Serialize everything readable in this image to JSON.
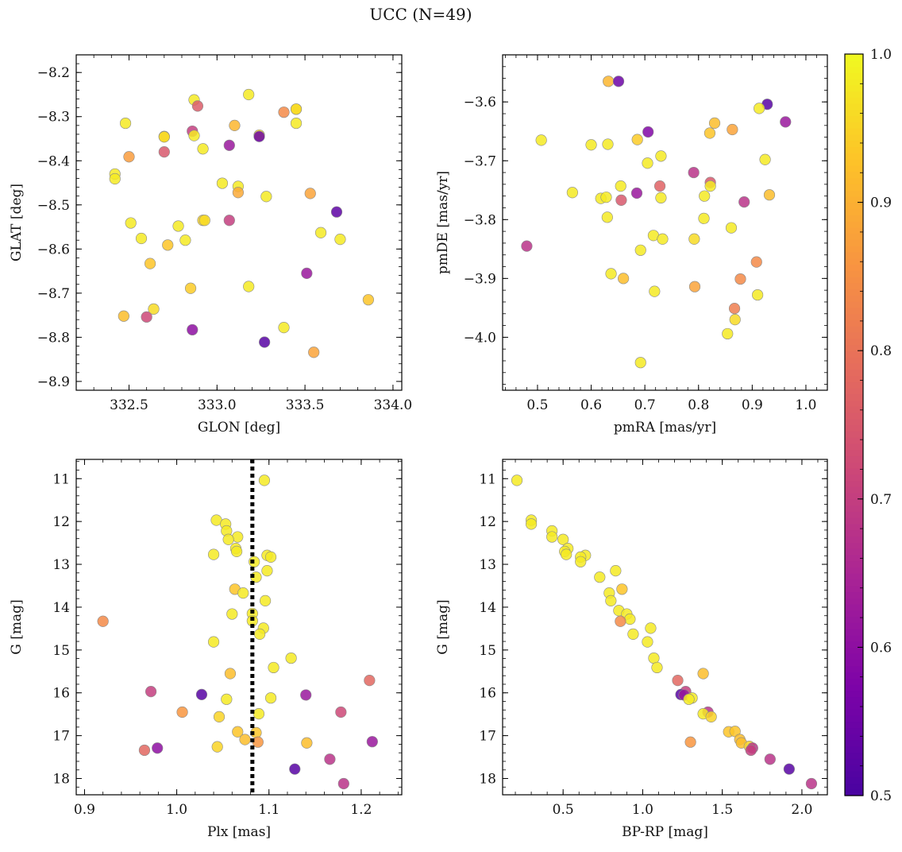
{
  "figure": {
    "title": "UCC (N=49)"
  },
  "colorbar": {
    "cmap": "plasma",
    "vmin": 0.5,
    "vmax": 1.0,
    "ticks": [
      0.5,
      0.6,
      0.7,
      0.8,
      0.9,
      1.0
    ],
    "tick_labels": [
      "0.5",
      "0.6",
      "0.7",
      "0.8",
      "0.9",
      "1.0"
    ]
  },
  "chart_data": [
    {
      "type": "scatter",
      "title": "",
      "xlabel": "GLON [deg]",
      "ylabel": "GLAT [deg]",
      "xlim": [
        332.2,
        334.05
      ],
      "ylim": [
        -8.92,
        -8.16
      ],
      "xticks": [
        332.5,
        333.0,
        333.5,
        334.0
      ],
      "xtick_labels": [
        "332.5",
        "333.0",
        "333.5",
        "334.0"
      ],
      "yticks": [
        -8.9,
        -8.8,
        -8.7,
        -8.6,
        -8.5,
        -8.4,
        -8.3,
        -8.2
      ],
      "ytick_labels": [
        "−8.9",
        "−8.8",
        "−8.7",
        "−8.6",
        "−8.5",
        "−8.4",
        "−8.3",
        "−8.2"
      ],
      "invert_y": false,
      "points": [
        {
          "x": 332.87,
          "y": -8.262,
          "c": 0.98
        },
        {
          "x": 332.89,
          "y": -8.276,
          "c": 0.76
        },
        {
          "x": 333.18,
          "y": -8.25,
          "c": 0.98
        },
        {
          "x": 333.38,
          "y": -8.29,
          "c": 0.84
        },
        {
          "x": 333.45,
          "y": -8.283,
          "c": 0.95
        },
        {
          "x": 333.45,
          "y": -8.283,
          "c": 0.96
        },
        {
          "x": 332.48,
          "y": -8.315,
          "c": 0.98
        },
        {
          "x": 332.86,
          "y": -8.333,
          "c": 0.7
        },
        {
          "x": 332.87,
          "y": -8.343,
          "c": 0.98
        },
        {
          "x": 332.7,
          "y": -8.345,
          "c": 0.94
        },
        {
          "x": 332.7,
          "y": -8.346,
          "c": 0.96
        },
        {
          "x": 333.1,
          "y": -8.32,
          "c": 0.91
        },
        {
          "x": 333.24,
          "y": -8.342,
          "c": 0.96
        },
        {
          "x": 333.24,
          "y": -8.345,
          "c": 0.55
        },
        {
          "x": 333.45,
          "y": -8.315,
          "c": 0.98
        },
        {
          "x": 333.07,
          "y": -8.365,
          "c": 0.62
        },
        {
          "x": 332.92,
          "y": -8.373,
          "c": 0.98
        },
        {
          "x": 332.5,
          "y": -8.391,
          "c": 0.87
        },
        {
          "x": 332.7,
          "y": -8.38,
          "c": 0.75
        },
        {
          "x": 332.42,
          "y": -8.43,
          "c": 0.98
        },
        {
          "x": 332.42,
          "y": -8.441,
          "c": 0.98
        },
        {
          "x": 333.03,
          "y": -8.451,
          "c": 0.98
        },
        {
          "x": 333.12,
          "y": -8.458,
          "c": 0.98
        },
        {
          "x": 333.12,
          "y": -8.472,
          "c": 0.89
        },
        {
          "x": 333.28,
          "y": -8.481,
          "c": 0.98
        },
        {
          "x": 333.53,
          "y": -8.474,
          "c": 0.88
        },
        {
          "x": 333.68,
          "y": -8.516,
          "c": 0.53
        },
        {
          "x": 332.51,
          "y": -8.541,
          "c": 0.98
        },
        {
          "x": 332.78,
          "y": -8.548,
          "c": 0.98
        },
        {
          "x": 332.92,
          "y": -8.535,
          "c": 0.95
        },
        {
          "x": 332.93,
          "y": -8.535,
          "c": 0.96
        },
        {
          "x": 333.07,
          "y": -8.535,
          "c": 0.7
        },
        {
          "x": 332.57,
          "y": -8.576,
          "c": 0.98
        },
        {
          "x": 332.72,
          "y": -8.591,
          "c": 0.93
        },
        {
          "x": 332.82,
          "y": -8.58,
          "c": 0.98
        },
        {
          "x": 333.59,
          "y": -8.563,
          "c": 0.98
        },
        {
          "x": 333.7,
          "y": -8.578,
          "c": 0.98
        },
        {
          "x": 332.62,
          "y": -8.633,
          "c": 0.93
        },
        {
          "x": 333.51,
          "y": -8.655,
          "c": 0.62
        },
        {
          "x": 332.85,
          "y": -8.689,
          "c": 0.94
        },
        {
          "x": 333.18,
          "y": -8.685,
          "c": 0.98
        },
        {
          "x": 332.64,
          "y": -8.736,
          "c": 0.96
        },
        {
          "x": 333.86,
          "y": -8.715,
          "c": 0.93
        },
        {
          "x": 332.47,
          "y": -8.752,
          "c": 0.92
        },
        {
          "x": 332.6,
          "y": -8.754,
          "c": 0.72
        },
        {
          "x": 332.86,
          "y": -8.783,
          "c": 0.6
        },
        {
          "x": 333.38,
          "y": -8.778,
          "c": 0.98
        },
        {
          "x": 333.27,
          "y": -8.811,
          "c": 0.52
        },
        {
          "x": 333.55,
          "y": -8.834,
          "c": 0.88
        }
      ]
    },
    {
      "type": "scatter",
      "title": "",
      "xlabel": "pmRA [mas/yr]",
      "ylabel": "pmDE [mas/yr]",
      "xlim": [
        0.435,
        1.04
      ],
      "ylim": [
        -4.09,
        -3.52
      ],
      "xticks": [
        0.5,
        0.6,
        0.7,
        0.8,
        0.9,
        1.0
      ],
      "xtick_labels": [
        "0.5",
        "0.6",
        "0.7",
        "0.8",
        "0.9",
        "1.0"
      ],
      "yticks": [
        -4.0,
        -3.9,
        -3.8,
        -3.7,
        -3.6
      ],
      "ytick_labels": [
        "−4.0",
        "−3.9",
        "−3.8",
        "−3.7",
        "−3.6"
      ],
      "invert_y": false,
      "points": [
        {
          "x": 0.632,
          "y": -3.565,
          "c": 0.91
        },
        {
          "x": 0.651,
          "y": -3.565,
          "c": 0.55
        },
        {
          "x": 0.928,
          "y": -3.604,
          "c": 0.52
        },
        {
          "x": 0.913,
          "y": -3.611,
          "c": 0.98
        },
        {
          "x": 0.962,
          "y": -3.634,
          "c": 0.62
        },
        {
          "x": 0.83,
          "y": -3.636,
          "c": 0.92
        },
        {
          "x": 0.863,
          "y": -3.647,
          "c": 0.88
        },
        {
          "x": 0.706,
          "y": -3.651,
          "c": 0.58
        },
        {
          "x": 0.821,
          "y": -3.653,
          "c": 0.93
        },
        {
          "x": 0.507,
          "y": -3.665,
          "c": 0.98
        },
        {
          "x": 0.686,
          "y": -3.664,
          "c": 0.94
        },
        {
          "x": 0.6,
          "y": -3.673,
          "c": 0.98
        },
        {
          "x": 0.631,
          "y": -3.672,
          "c": 0.98
        },
        {
          "x": 0.73,
          "y": -3.692,
          "c": 0.98
        },
        {
          "x": 0.924,
          "y": -3.698,
          "c": 0.98
        },
        {
          "x": 0.705,
          "y": -3.704,
          "c": 0.98
        },
        {
          "x": 0.791,
          "y": -3.72,
          "c": 0.68
        },
        {
          "x": 0.822,
          "y": -3.737,
          "c": 0.75
        },
        {
          "x": 0.822,
          "y": -3.743,
          "c": 0.98
        },
        {
          "x": 0.728,
          "y": -3.743,
          "c": 0.77
        },
        {
          "x": 0.655,
          "y": -3.743,
          "c": 0.98
        },
        {
          "x": 0.565,
          "y": -3.754,
          "c": 0.98
        },
        {
          "x": 0.685,
          "y": -3.755,
          "c": 0.62
        },
        {
          "x": 0.932,
          "y": -3.758,
          "c": 0.92
        },
        {
          "x": 0.811,
          "y": -3.76,
          "c": 0.98
        },
        {
          "x": 0.618,
          "y": -3.764,
          "c": 0.98
        },
        {
          "x": 0.628,
          "y": -3.762,
          "c": 0.98
        },
        {
          "x": 0.73,
          "y": -3.763,
          "c": 0.98
        },
        {
          "x": 0.656,
          "y": -3.767,
          "c": 0.75
        },
        {
          "x": 0.885,
          "y": -3.77,
          "c": 0.68
        },
        {
          "x": 0.63,
          "y": -3.796,
          "c": 0.98
        },
        {
          "x": 0.81,
          "y": -3.798,
          "c": 0.98
        },
        {
          "x": 0.861,
          "y": -3.814,
          "c": 0.98
        },
        {
          "x": 0.716,
          "y": -3.827,
          "c": 0.98
        },
        {
          "x": 0.733,
          "y": -3.833,
          "c": 0.98
        },
        {
          "x": 0.792,
          "y": -3.833,
          "c": 0.96
        },
        {
          "x": 0.48,
          "y": -3.845,
          "c": 0.68
        },
        {
          "x": 0.692,
          "y": -3.852,
          "c": 0.98
        },
        {
          "x": 0.908,
          "y": -3.872,
          "c": 0.84
        },
        {
          "x": 0.637,
          "y": -3.892,
          "c": 0.98
        },
        {
          "x": 0.66,
          "y": -3.9,
          "c": 0.92
        },
        {
          "x": 0.878,
          "y": -3.901,
          "c": 0.84
        },
        {
          "x": 0.793,
          "y": -3.914,
          "c": 0.88
        },
        {
          "x": 0.718,
          "y": -3.922,
          "c": 0.98
        },
        {
          "x": 0.91,
          "y": -3.928,
          "c": 0.98
        },
        {
          "x": 0.867,
          "y": -3.951,
          "c": 0.82
        },
        {
          "x": 0.868,
          "y": -3.97,
          "c": 0.96
        },
        {
          "x": 0.854,
          "y": -3.994,
          "c": 0.98
        },
        {
          "x": 0.692,
          "y": -4.043,
          "c": 0.98
        }
      ]
    },
    {
      "type": "scatter",
      "title": "",
      "xlabel": "Plx [mas]",
      "ylabel": "G [mag]",
      "xlim": [
        0.891,
        1.244
      ],
      "ylim": [
        18.38,
        10.55
      ],
      "xticks": [
        0.9,
        1.0,
        1.1,
        1.2
      ],
      "xtick_labels": [
        "0.9",
        "1.0",
        "1.1",
        "1.2"
      ],
      "yticks": [
        11,
        12,
        13,
        14,
        15,
        16,
        17,
        18
      ],
      "ytick_labels": [
        "11",
        "12",
        "13",
        "14",
        "15",
        "16",
        "17",
        "18"
      ],
      "invert_y": true,
      "vline": {
        "x": 1.082,
        "style": "dotted",
        "color": "#000000"
      },
      "points": [
        {
          "x": 1.095,
          "y": 11.04,
          "c": 0.98
        },
        {
          "x": 1.043,
          "y": 11.97,
          "c": 0.98
        },
        {
          "x": 1.053,
          "y": 12.06,
          "c": 0.98
        },
        {
          "x": 1.054,
          "y": 12.22,
          "c": 0.98
        },
        {
          "x": 1.066,
          "y": 12.36,
          "c": 0.98
        },
        {
          "x": 1.056,
          "y": 12.42,
          "c": 0.98
        },
        {
          "x": 1.064,
          "y": 12.63,
          "c": 0.98
        },
        {
          "x": 1.065,
          "y": 12.7,
          "c": 0.98
        },
        {
          "x": 1.04,
          "y": 12.77,
          "c": 0.98
        },
        {
          "x": 1.098,
          "y": 12.79,
          "c": 0.98
        },
        {
          "x": 1.102,
          "y": 12.83,
          "c": 0.98
        },
        {
          "x": 1.084,
          "y": 12.94,
          "c": 0.98
        },
        {
          "x": 1.098,
          "y": 13.15,
          "c": 0.98
        },
        {
          "x": 1.086,
          "y": 13.3,
          "c": 0.98
        },
        {
          "x": 1.063,
          "y": 13.58,
          "c": 0.93
        },
        {
          "x": 1.072,
          "y": 13.67,
          "c": 0.98
        },
        {
          "x": 1.096,
          "y": 13.85,
          "c": 0.98
        },
        {
          "x": 1.06,
          "y": 14.16,
          "c": 0.98
        },
        {
          "x": 1.082,
          "y": 14.15,
          "c": 0.98
        },
        {
          "x": 1.082,
          "y": 14.32,
          "c": 0.98
        },
        {
          "x": 0.92,
          "y": 14.33,
          "c": 0.84
        },
        {
          "x": 1.094,
          "y": 14.49,
          "c": 0.98
        },
        {
          "x": 1.09,
          "y": 14.63,
          "c": 0.98
        },
        {
          "x": 1.04,
          "y": 14.81,
          "c": 0.98
        },
        {
          "x": 1.124,
          "y": 15.19,
          "c": 0.98
        },
        {
          "x": 1.105,
          "y": 15.41,
          "c": 0.98
        },
        {
          "x": 1.058,
          "y": 15.55,
          "c": 0.92
        },
        {
          "x": 1.209,
          "y": 15.71,
          "c": 0.78
        },
        {
          "x": 0.972,
          "y": 15.97,
          "c": 0.7
        },
        {
          "x": 1.027,
          "y": 16.04,
          "c": 0.52
        },
        {
          "x": 1.14,
          "y": 16.05,
          "c": 0.62
        },
        {
          "x": 1.054,
          "y": 16.15,
          "c": 0.98
        },
        {
          "x": 1.102,
          "y": 16.12,
          "c": 0.98
        },
        {
          "x": 1.006,
          "y": 16.45,
          "c": 0.86
        },
        {
          "x": 1.178,
          "y": 16.45,
          "c": 0.72
        },
        {
          "x": 1.089,
          "y": 16.49,
          "c": 0.98
        },
        {
          "x": 1.046,
          "y": 16.56,
          "c": 0.95
        },
        {
          "x": 1.066,
          "y": 16.91,
          "c": 0.93
        },
        {
          "x": 1.086,
          "y": 16.93,
          "c": 0.93
        },
        {
          "x": 1.074,
          "y": 17.09,
          "c": 0.92
        },
        {
          "x": 1.088,
          "y": 17.15,
          "c": 0.86
        },
        {
          "x": 1.141,
          "y": 17.17,
          "c": 0.92
        },
        {
          "x": 1.212,
          "y": 17.14,
          "c": 0.62
        },
        {
          "x": 1.044,
          "y": 17.26,
          "c": 0.95
        },
        {
          "x": 0.979,
          "y": 17.29,
          "c": 0.6
        },
        {
          "x": 0.965,
          "y": 17.34,
          "c": 0.78
        },
        {
          "x": 1.166,
          "y": 17.55,
          "c": 0.68
        },
        {
          "x": 1.128,
          "y": 17.78,
          "c": 0.52
        },
        {
          "x": 1.181,
          "y": 18.12,
          "c": 0.68
        }
      ]
    },
    {
      "type": "scatter",
      "title": "",
      "xlabel": "BP-RP [mag]",
      "ylabel": "G [mag]",
      "xlim": [
        0.12,
        2.16
      ],
      "ylim": [
        18.38,
        10.55
      ],
      "xticks": [
        0.5,
        1.0,
        1.5,
        2.0
      ],
      "xtick_labels": [
        "0.5",
        "1.0",
        "1.5",
        "2.0"
      ],
      "invert_y": true,
      "yticks": [
        11,
        12,
        13,
        14,
        15,
        16,
        17,
        18
      ],
      "ytick_labels": [
        "11",
        "12",
        "13",
        "14",
        "15",
        "16",
        "17",
        "18"
      ],
      "points": [
        {
          "x": 0.21,
          "y": 11.04,
          "c": 0.98
        },
        {
          "x": 0.3,
          "y": 11.97,
          "c": 0.98
        },
        {
          "x": 0.3,
          "y": 12.06,
          "c": 0.98
        },
        {
          "x": 0.43,
          "y": 12.22,
          "c": 0.98
        },
        {
          "x": 0.43,
          "y": 12.36,
          "c": 0.98
        },
        {
          "x": 0.5,
          "y": 12.42,
          "c": 0.98
        },
        {
          "x": 0.53,
          "y": 12.63,
          "c": 0.98
        },
        {
          "x": 0.51,
          "y": 12.7,
          "c": 0.98
        },
        {
          "x": 0.52,
          "y": 12.77,
          "c": 0.98
        },
        {
          "x": 0.64,
          "y": 12.79,
          "c": 0.98
        },
        {
          "x": 0.61,
          "y": 12.83,
          "c": 0.98
        },
        {
          "x": 0.61,
          "y": 12.94,
          "c": 0.98
        },
        {
          "x": 0.83,
          "y": 13.15,
          "c": 0.98
        },
        {
          "x": 0.73,
          "y": 13.3,
          "c": 0.98
        },
        {
          "x": 0.87,
          "y": 13.58,
          "c": 0.93
        },
        {
          "x": 0.79,
          "y": 13.67,
          "c": 0.98
        },
        {
          "x": 0.8,
          "y": 13.85,
          "c": 0.98
        },
        {
          "x": 0.85,
          "y": 14.08,
          "c": 0.98
        },
        {
          "x": 0.9,
          "y": 14.16,
          "c": 0.98
        },
        {
          "x": 0.92,
          "y": 14.28,
          "c": 0.98
        },
        {
          "x": 0.86,
          "y": 14.33,
          "c": 0.84
        },
        {
          "x": 1.05,
          "y": 14.49,
          "c": 0.98
        },
        {
          "x": 0.94,
          "y": 14.63,
          "c": 0.98
        },
        {
          "x": 1.03,
          "y": 14.81,
          "c": 0.98
        },
        {
          "x": 1.07,
          "y": 15.19,
          "c": 0.98
        },
        {
          "x": 1.09,
          "y": 15.41,
          "c": 0.98
        },
        {
          "x": 1.38,
          "y": 15.55,
          "c": 0.92
        },
        {
          "x": 1.22,
          "y": 15.71,
          "c": 0.78
        },
        {
          "x": 1.27,
          "y": 15.97,
          "c": 0.7
        },
        {
          "x": 1.24,
          "y": 16.04,
          "c": 0.52
        },
        {
          "x": 1.26,
          "y": 16.05,
          "c": 0.62
        },
        {
          "x": 1.31,
          "y": 16.12,
          "c": 0.98
        },
        {
          "x": 1.29,
          "y": 16.15,
          "c": 0.98
        },
        {
          "x": 1.41,
          "y": 16.45,
          "c": 0.68
        },
        {
          "x": 1.38,
          "y": 16.49,
          "c": 0.98
        },
        {
          "x": 1.43,
          "y": 16.56,
          "c": 0.95
        },
        {
          "x": 1.54,
          "y": 16.91,
          "c": 0.93
        },
        {
          "x": 1.58,
          "y": 16.9,
          "c": 0.93
        },
        {
          "x": 1.61,
          "y": 17.09,
          "c": 0.92
        },
        {
          "x": 1.3,
          "y": 17.15,
          "c": 0.86
        },
        {
          "x": 1.62,
          "y": 17.17,
          "c": 0.92
        },
        {
          "x": 1.67,
          "y": 17.25,
          "c": 0.95
        },
        {
          "x": 1.69,
          "y": 17.29,
          "c": 0.68
        },
        {
          "x": 1.68,
          "y": 17.34,
          "c": 0.7
        },
        {
          "x": 1.8,
          "y": 17.55,
          "c": 0.68
        },
        {
          "x": 1.92,
          "y": 17.78,
          "c": 0.52
        },
        {
          "x": 2.06,
          "y": 18.12,
          "c": 0.68
        }
      ]
    }
  ]
}
